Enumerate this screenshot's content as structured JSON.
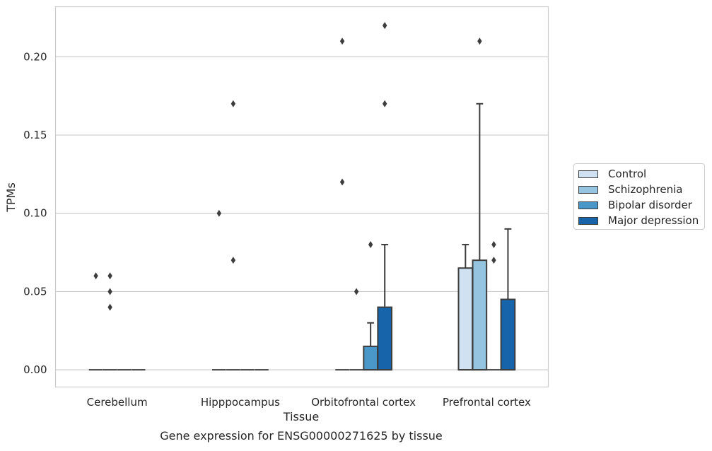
{
  "chart_data": {
    "type": "box",
    "title": "Gene expression for ENSG00000271625 by tissue",
    "xlabel": "Tissue",
    "ylabel": "TPMs",
    "ylim": [
      -0.011,
      0.232
    ],
    "yticks": [
      "0.00",
      "0.05",
      "0.10",
      "0.15",
      "0.20"
    ],
    "ytick_values": [
      0.0,
      0.05,
      0.1,
      0.15,
      0.2
    ],
    "grid": "horizontal",
    "legend_position": "right",
    "categories": [
      "Cerebellum",
      "Hipppocampus",
      "Orbitofrontal cortex",
      "Prefrontal cortex"
    ],
    "series": [
      {
        "name": "Control",
        "color": "#d0e1f2",
        "boxes": [
          {
            "q1": 0,
            "median": 0,
            "q3": 0,
            "whisker_low": 0,
            "whisker_high": 0,
            "outliers": [
              0.06
            ]
          },
          {
            "q1": 0,
            "median": 0,
            "q3": 0,
            "whisker_low": 0,
            "whisker_high": 0,
            "outliers": [
              0.1
            ]
          },
          {
            "q1": 0,
            "median": 0,
            "q3": 0,
            "whisker_low": 0,
            "whisker_high": 0,
            "outliers": [
              0.12,
              0.21
            ]
          },
          {
            "q1": 0,
            "median": 0,
            "q3": 0.065,
            "whisker_low": 0,
            "whisker_high": 0.08,
            "outliers": []
          }
        ]
      },
      {
        "name": "Schizophrenia",
        "color": "#94c4df",
        "boxes": [
          {
            "q1": 0,
            "median": 0,
            "q3": 0,
            "whisker_low": 0,
            "whisker_high": 0,
            "outliers": [
              0.04,
              0.05,
              0.06
            ]
          },
          {
            "q1": 0,
            "median": 0,
            "q3": 0,
            "whisker_low": 0,
            "whisker_high": 0,
            "outliers": [
              0.07,
              0.17
            ]
          },
          {
            "q1": 0,
            "median": 0,
            "q3": 0,
            "whisker_low": 0,
            "whisker_high": 0,
            "outliers": [
              0.05
            ]
          },
          {
            "q1": 0,
            "median": 0,
            "q3": 0.07,
            "whisker_low": 0,
            "whisker_high": 0.17,
            "outliers": [
              0.21
            ]
          }
        ]
      },
      {
        "name": "Bipolar disorder",
        "color": "#4a98c9",
        "boxes": [
          {
            "q1": 0,
            "median": 0,
            "q3": 0,
            "whisker_low": 0,
            "whisker_high": 0,
            "outliers": []
          },
          {
            "q1": 0,
            "median": 0,
            "q3": 0,
            "whisker_low": 0,
            "whisker_high": 0,
            "outliers": []
          },
          {
            "q1": 0,
            "median": 0,
            "q3": 0.015,
            "whisker_low": 0,
            "whisker_high": 0.03,
            "outliers": [
              0.08
            ]
          },
          {
            "q1": 0,
            "median": 0,
            "q3": 0,
            "whisker_low": 0,
            "whisker_high": 0,
            "outliers": [
              0.07,
              0.08
            ]
          }
        ]
      },
      {
        "name": "Major depression",
        "color": "#1764ab",
        "boxes": [
          {
            "q1": 0,
            "median": 0,
            "q3": 0,
            "whisker_low": 0,
            "whisker_high": 0,
            "outliers": []
          },
          {
            "q1": 0,
            "median": 0,
            "q3": 0,
            "whisker_low": 0,
            "whisker_high": 0,
            "outliers": []
          },
          {
            "q1": 0,
            "median": 0,
            "q3": 0.04,
            "whisker_low": 0,
            "whisker_high": 0.08,
            "outliers": [
              0.17,
              0.22
            ]
          },
          {
            "q1": 0,
            "median": 0,
            "q3": 0.045,
            "whisker_low": 0,
            "whisker_high": 0.09,
            "outliers": []
          }
        ]
      }
    ]
  }
}
